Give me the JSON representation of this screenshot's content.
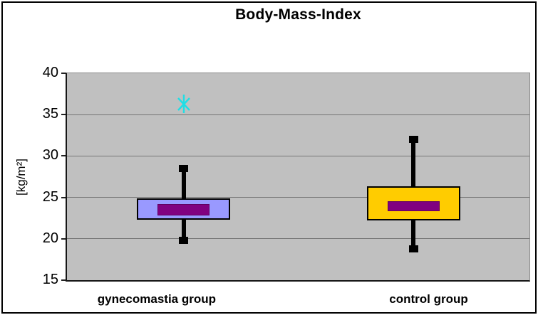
{
  "chart_data": {
    "type": "boxplot",
    "title": "Body-Mass-Index",
    "ylabel": "[kg/m²]",
    "ylim": [
      15,
      40
    ],
    "yticks": [
      15,
      20,
      25,
      30,
      35,
      40
    ],
    "grid": true,
    "legend": "none",
    "categories": [
      "gynecomastia group",
      "control group"
    ],
    "series": [
      {
        "name": "gynecomastia group",
        "x_frac": 0.252,
        "label_x_frac": 0.194,
        "whisker_low": 19.8,
        "q1": 22.3,
        "median_band": [
          22.8,
          24.2
        ],
        "q3": 24.9,
        "whisker_high": 28.5,
        "outliers": [
          36.3
        ],
        "box_color": "#9999FF"
      },
      {
        "name": "control group",
        "x_frac": 0.749,
        "label_x_frac": 0.782,
        "whisker_low": 18.8,
        "q1": 22.2,
        "median_band": [
          23.3,
          24.5
        ],
        "q3": 26.3,
        "whisker_high": 32.0,
        "outliers": [],
        "box_color": "#FFCC00"
      }
    ],
    "band_color": "#800080",
    "whisker_color": "#000000",
    "outlier_color": "#21DEE5",
    "outlier_marker": "asterisk",
    "plot_bg": "#C0C0C0",
    "grid_color": "#757575"
  }
}
